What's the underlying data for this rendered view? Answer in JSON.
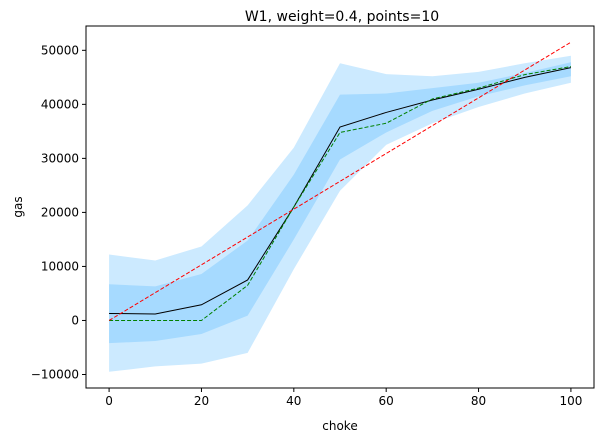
{
  "chart_data": {
    "type": "line",
    "title": "W1, weight=0.4, points=10",
    "xlabel": "choke",
    "ylabel": "gas",
    "xlim": [
      -5,
      105
    ],
    "ylim": [
      -12500,
      54500
    ],
    "xticks": [
      0,
      20,
      40,
      60,
      80,
      100
    ],
    "yticks": [
      -10000,
      0,
      10000,
      20000,
      30000,
      40000,
      50000
    ],
    "xtick_labels": [
      "0",
      "20",
      "40",
      "60",
      "80",
      "100"
    ],
    "ytick_labels": [
      "−10000",
      "0",
      "10000",
      "20000",
      "30000",
      "40000",
      "50000"
    ],
    "grid": false,
    "x": [
      0,
      10,
      20,
      30,
      40,
      50,
      60,
      70,
      80,
      90,
      100
    ],
    "series": [
      {
        "kind": "band",
        "color": "#cceaff",
        "lower": [
          -9500,
          -8500,
          -8000,
          -6000,
          9500,
          24000,
          32500,
          36500,
          39500,
          42000,
          44000
        ],
        "upper": [
          12200,
          11100,
          13700,
          21300,
          32000,
          47600,
          45600,
          45200,
          46000,
          47600,
          49000
        ]
      },
      {
        "kind": "band",
        "color": "#a6daff",
        "lower": [
          -4200,
          -3800,
          -2500,
          900,
          15000,
          29800,
          34800,
          38800,
          41500,
          43500,
          45200
        ],
        "upper": [
          6700,
          6300,
          8600,
          14800,
          27000,
          41800,
          42000,
          43000,
          44000,
          45800,
          47800
        ]
      },
      {
        "kind": "line",
        "color": "#000000",
        "dash": "",
        "values": [
          1300,
          1200,
          2900,
          7500,
          21000,
          35800,
          38500,
          40800,
          42800,
          45000,
          46800
        ]
      },
      {
        "kind": "line",
        "color": "#008000",
        "dash": "4,2",
        "values": [
          0,
          0,
          0,
          6500,
          21000,
          34800,
          36500,
          41000,
          43000,
          45500,
          47000
        ]
      },
      {
        "kind": "line",
        "color": "#ff0000",
        "dash": "4,2",
        "values": [
          0,
          5150,
          10300,
          15450,
          20600,
          25750,
          30900,
          36050,
          41200,
          46350,
          51500
        ]
      }
    ]
  }
}
